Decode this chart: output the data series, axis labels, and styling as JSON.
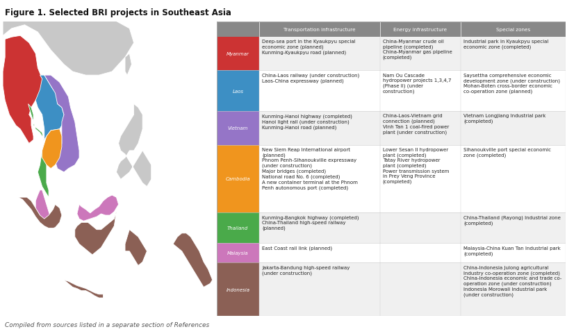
{
  "title": "Figure 1. Selected BRI projects in Southeast Asia",
  "footer": "Compiled from sources listed in a separate section of References",
  "col_headers": [
    "Transportation infrastructure",
    "Energy infrastructure",
    "Special zones"
  ],
  "rows": [
    {
      "country": "Myanmar",
      "color": "#cc3333",
      "bg_alt": true,
      "transport": "Deep-sea port in the Kyaukpyu special\neconomic zone (planned)\nKunming-Kyaukpyu road (planned)",
      "energy": "China-Myanmar crude oil\npipeline (completed)\nChina-Myanmar gas pipeline\n(completed)",
      "special": "Industrial park in Kyaukpyu special\neconomic zone (completed)"
    },
    {
      "country": "Laos",
      "color": "#3d8fc4",
      "bg_alt": false,
      "transport": "China-Laos railway (under construction)\nLaos-China expressway (planned)",
      "energy": "Nam Ou Cascade\nhydropower projects 1,3,4,7\n(Phase II) (under\nconstruction)",
      "special": "Saysettha comprehensive economic\ndevelopment zone (under construction)\nMohan-Boten cross-border economic\nco-operation zone (planned)"
    },
    {
      "country": "Vietnam",
      "color": "#9575c7",
      "bg_alt": true,
      "transport": "Kunming-Hanoi highway (completed)\nHanoi light rail (under construction)\nKunming-Hanoi road (planned)",
      "energy": "China-Laos-Vietnam grid\nconnection (planned)\nVinh Tan 1 coal-fired power\nplant (under construction)",
      "special": "Vietnam Longjiang Industrial park\n(completed)"
    },
    {
      "country": "Cambodia",
      "color": "#f0951e",
      "bg_alt": false,
      "transport": "New Siem Reap International airport\n(planned)\nPhnom Penh-Sihanoukville expressway\n(under construction)\nMajor bridges (completed)\nNational road No. 6 (completed)\nA new container terminal at the Phnom\nPenh autonomous port (completed)",
      "energy": "Lower Sesan II hydropower\nplant (completed)\nTatay River hydropower\nplant (completed)\nPower transmission system\nin Prey Veng Province\n(completed)",
      "special": "Sihanoukville port special economic\nzone (completed)"
    },
    {
      "country": "Thailand",
      "color": "#4aaa4a",
      "bg_alt": true,
      "transport": "Kunming-Bangkok highway (completed)\nChina-Thailand high-speed railway\n(planned)",
      "energy": "",
      "special": "China-Thailand (Rayong) Industrial zone\n(completed)"
    },
    {
      "country": "Malaysia",
      "color": "#cc77bb",
      "bg_alt": false,
      "transport": "East Coast rail link (planned)",
      "energy": "",
      "special": "Malaysia-China Kuan Tan Industrial park\n(completed)"
    },
    {
      "country": "Indonesia",
      "color": "#8b6055",
      "bg_alt": true,
      "transport": "Jakarta-Bandung high-speed railway\n(under construction)",
      "energy": "",
      "special": "China-Indonesia Julong agricultural\nIndustry co-operation zone (completed)\nChina-Indonesia economic and trade co-\noperation zone (under construction)\nIndonesia Morowali Industrial park\n(under construction)"
    }
  ],
  "map_colors": {
    "myanmar": "#cc3333",
    "laos": "#3d8fc4",
    "vietnam": "#9575c7",
    "cambodia": "#f0951e",
    "thailand": "#4aaa4a",
    "malaysia": "#cc77bb",
    "indonesia": "#8b6055",
    "other_land": "#c8c8c8",
    "ocean": "#ffffff",
    "land_outline": "#e8e8e8"
  },
  "row_heights_approx": [
    3.5,
    4.2,
    3.5,
    7.0,
    3.2,
    2.0,
    5.5
  ]
}
